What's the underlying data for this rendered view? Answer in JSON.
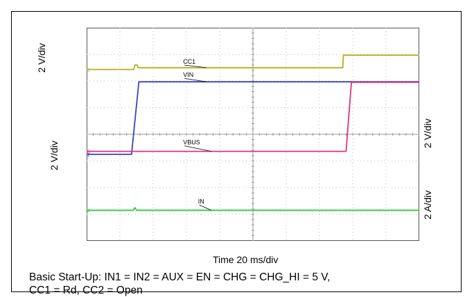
{
  "scale_labels": {
    "left_top": "2 V/div",
    "left_bottom": "2 V/div",
    "right_top": "2 V/div",
    "right_bottom": "2 A/div"
  },
  "time_label": "Time 20 ms/div",
  "caption": {
    "line1": "Basic Start-Up: IN1 = IN2 = AUX = EN = CHG = CHG_HI = 5 V,",
    "line2": "CC1 = Rd, CC2 = Open"
  },
  "chart_data": {
    "type": "line",
    "title": "",
    "xlabel": "Time 20 ms/div",
    "x_divisions": 10,
    "y_divisions": 8,
    "x_range_divs": [
      0,
      10
    ],
    "grid": true,
    "axis_ticks": "center crosshair",
    "series": [
      {
        "name": "CC1",
        "color": "#b5ae1e",
        "marker_label": "1",
        "points": [
          [
            0,
            6.43
          ],
          [
            1.42,
            6.43
          ],
          [
            1.45,
            6.6
          ],
          [
            1.52,
            6.6
          ],
          [
            1.55,
            6.5
          ],
          [
            7.7,
            6.5
          ],
          [
            7.72,
            6.97
          ],
          [
            10,
            6.97
          ]
        ]
      },
      {
        "name": "VIN",
        "color": "#3a3fc6",
        "marker_label": "2",
        "points": [
          [
            0,
            3.25
          ],
          [
            1.35,
            3.25
          ],
          [
            1.57,
            5.97
          ],
          [
            10,
            5.97
          ]
        ]
      },
      {
        "name": "VBUS",
        "color": "#e0307a",
        "marker_label": "3",
        "points": [
          [
            0,
            3.36
          ],
          [
            7.8,
            3.36
          ],
          [
            7.96,
            5.95
          ],
          [
            10,
            5.95
          ]
        ]
      },
      {
        "name": "IN",
        "color": "#2ccf3a",
        "marker_label": "4",
        "points": [
          [
            0,
            1.15
          ],
          [
            1.4,
            1.15
          ],
          [
            1.45,
            1.25
          ],
          [
            1.5,
            1.15
          ],
          [
            10,
            1.15
          ]
        ]
      }
    ],
    "trace_labels": [
      {
        "series": "CC1",
        "text": "CC1"
      },
      {
        "series": "VIN",
        "text": "VIN"
      },
      {
        "series": "VBUS",
        "text": "VBUS"
      },
      {
        "series": "IN",
        "text": "IN"
      }
    ]
  }
}
